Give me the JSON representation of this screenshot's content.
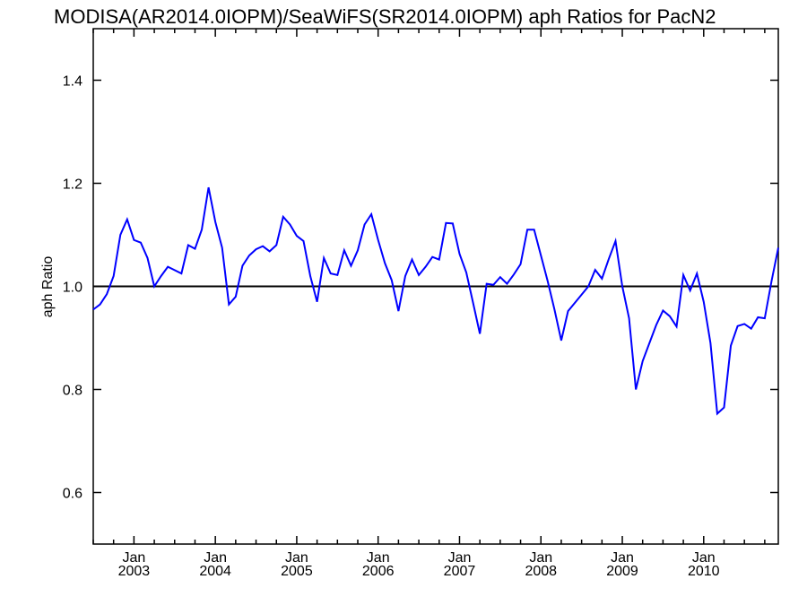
{
  "chart_data": {
    "type": "line",
    "title": "MODISA(AR2014.0IOPM)/SeaWiFS(SR2014.0IOPM)  aph Ratios for PacN2",
    "xlabel": "",
    "ylabel": "aph Ratio",
    "ylim": [
      0.5,
      1.5
    ],
    "xlim": [
      "2002-07",
      "2010-12"
    ],
    "grid": false,
    "reference_line": 1.0,
    "yticks": [
      {
        "value": 0.6,
        "label": "0.6"
      },
      {
        "value": 0.8,
        "label": "0.8"
      },
      {
        "value": 1.0,
        "label": "1.0"
      },
      {
        "value": 1.2,
        "label": "1.2"
      },
      {
        "value": 1.4,
        "label": "1.4"
      }
    ],
    "xticks": [
      {
        "date": "2003-01",
        "month_label": "Jan",
        "year_label": "2003"
      },
      {
        "date": "2004-01",
        "month_label": "Jan",
        "year_label": "2004"
      },
      {
        "date": "2005-01",
        "month_label": "Jan",
        "year_label": "2005"
      },
      {
        "date": "2006-01",
        "month_label": "Jan",
        "year_label": "2006"
      },
      {
        "date": "2007-01",
        "month_label": "Jan",
        "year_label": "2007"
      },
      {
        "date": "2008-01",
        "month_label": "Jan",
        "year_label": "2008"
      },
      {
        "date": "2009-01",
        "month_label": "Jan",
        "year_label": "2009"
      },
      {
        "date": "2010-01",
        "month_label": "Jan",
        "year_label": "2010"
      }
    ],
    "colors": {
      "series": "#0000ff",
      "reference": "#000000",
      "axes": "#000000"
    },
    "series": [
      {
        "x": [
          "2002-07",
          "2002-08",
          "2002-09",
          "2002-10",
          "2002-11",
          "2002-12",
          "2003-01",
          "2003-02",
          "2003-03",
          "2003-04",
          "2003-05",
          "2003-06",
          "2003-08",
          "2003-09",
          "2003-10",
          "2003-11",
          "2003-12",
          "2004-01",
          "2004-02",
          "2004-03",
          "2004-04",
          "2004-05",
          "2004-06",
          "2004-07",
          "2004-08",
          "2004-09",
          "2004-10",
          "2004-11",
          "2004-12",
          "2005-01",
          "2005-02",
          "2005-03",
          "2005-04",
          "2005-05",
          "2005-06",
          "2005-07",
          "2005-08",
          "2005-09",
          "2005-10",
          "2005-11",
          "2005-12",
          "2006-01",
          "2006-02",
          "2006-03",
          "2006-04",
          "2006-05",
          "2006-06",
          "2006-07",
          "2006-08",
          "2006-09",
          "2006-10",
          "2006-11",
          "2006-12",
          "2007-01",
          "2007-02",
          "2007-03",
          "2007-04",
          "2007-05",
          "2007-06",
          "2007-07",
          "2007-08",
          "2007-09",
          "2007-10",
          "2007-11",
          "2007-12",
          "2008-01",
          "2008-02",
          "2008-03",
          "2008-04",
          "2008-05",
          "2008-08",
          "2008-09",
          "2008-10",
          "2008-11",
          "2008-12",
          "2009-01",
          "2009-02",
          "2009-03",
          "2009-04",
          "2009-06",
          "2009-07",
          "2009-08",
          "2009-09",
          "2009-10",
          "2009-11",
          "2009-12",
          "2010-01",
          "2010-02",
          "2010-03",
          "2010-04",
          "2010-05",
          "2010-06",
          "2010-07",
          "2010-08",
          "2010-09",
          "2010-10",
          "2010-11",
          "2010-12"
        ],
        "values": [
          0.955,
          0.965,
          0.985,
          1.02,
          1.1,
          1.13,
          1.09,
          1.085,
          1.055,
          1.0,
          1.02,
          1.038,
          1.025,
          1.08,
          1.073,
          1.11,
          1.192,
          1.125,
          1.075,
          0.965,
          0.98,
          1.04,
          1.06,
          1.072,
          1.078,
          1.068,
          1.08,
          1.135,
          1.12,
          1.098,
          1.088,
          1.02,
          0.97,
          1.055,
          1.025,
          1.022,
          1.07,
          1.04,
          1.07,
          1.12,
          1.14,
          1.09,
          1.045,
          1.012,
          0.952,
          1.02,
          1.052,
          1.022,
          1.038,
          1.057,
          1.052,
          1.123,
          1.122,
          1.063,
          1.027,
          0.968,
          0.908,
          1.005,
          1.003,
          1.018,
          1.005,
          1.023,
          1.043,
          1.11,
          1.11,
          1.06,
          1.01,
          0.955,
          0.895,
          0.952,
          1.0,
          1.032,
          1.015,
          1.053,
          1.088,
          1.0,
          0.938,
          0.8,
          0.855,
          0.925,
          0.953,
          0.942,
          0.922,
          1.022,
          0.992,
          1.025,
          0.97,
          0.89,
          0.753,
          0.765,
          0.885,
          0.923,
          0.927,
          0.918,
          0.94,
          0.938,
          1.01,
          1.075
        ]
      }
    ]
  }
}
